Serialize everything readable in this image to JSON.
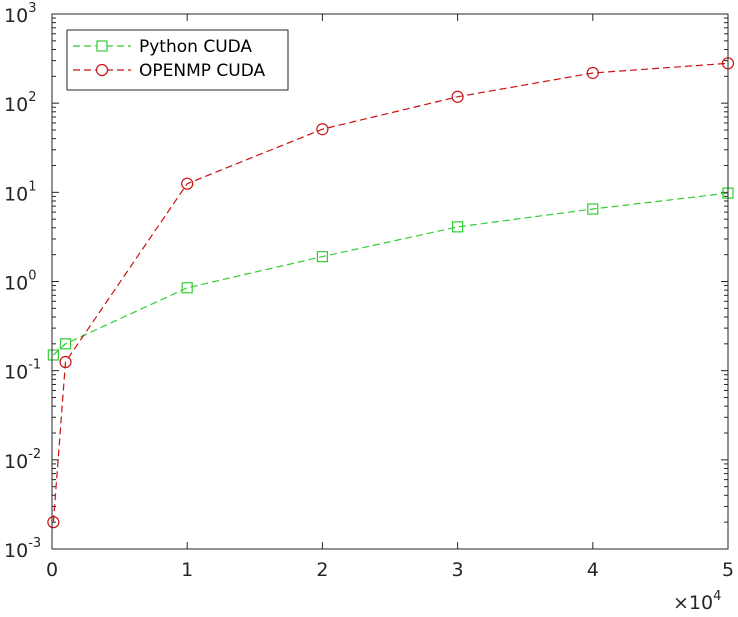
{
  "chart_data": {
    "type": "line",
    "title": "",
    "xlabel": "",
    "ylabel": "",
    "x_scale": "linear",
    "y_scale": "log",
    "xlim": [
      0,
      50000
    ],
    "ylim": [
      0.001,
      1000
    ],
    "x_multiplier": {
      "base": "×10",
      "exponent": "4"
    },
    "x_ticks": [
      {
        "value": 0,
        "label": "0"
      },
      {
        "value": 10000,
        "label": "1"
      },
      {
        "value": 20000,
        "label": "2"
      },
      {
        "value": 30000,
        "label": "3"
      },
      {
        "value": 40000,
        "label": "4"
      },
      {
        "value": 50000,
        "label": "5"
      }
    ],
    "y_ticks": [
      {
        "value": 0.001,
        "base": "10",
        "exponent": "-3"
      },
      {
        "value": 0.01,
        "base": "10",
        "exponent": "-2"
      },
      {
        "value": 0.1,
        "base": "10",
        "exponent": "-1"
      },
      {
        "value": 1,
        "base": "10",
        "exponent": "0"
      },
      {
        "value": 10,
        "base": "10",
        "exponent": "1"
      },
      {
        "value": 100,
        "base": "10",
        "exponent": "2"
      },
      {
        "value": 1000,
        "base": "10",
        "exponent": "3"
      }
    ],
    "grid": false,
    "legend_position": "top-left",
    "series": [
      {
        "name": "Python CUDA",
        "color": "#33cc33",
        "marker": "square",
        "line_style": "dashed",
        "x": [
          100,
          1000,
          10000,
          20000,
          30000,
          40000,
          50000
        ],
        "y": [
          0.15,
          0.2,
          0.85,
          1.9,
          4.1,
          6.5,
          9.8
        ]
      },
      {
        "name": "OPENMP CUDA",
        "color": "#cc1111",
        "marker": "circle",
        "line_style": "dashed",
        "x": [
          100,
          1000,
          10000,
          20000,
          30000,
          40000,
          50000
        ],
        "y": [
          0.002,
          0.125,
          12.5,
          51,
          118,
          218,
          280
        ]
      }
    ]
  }
}
